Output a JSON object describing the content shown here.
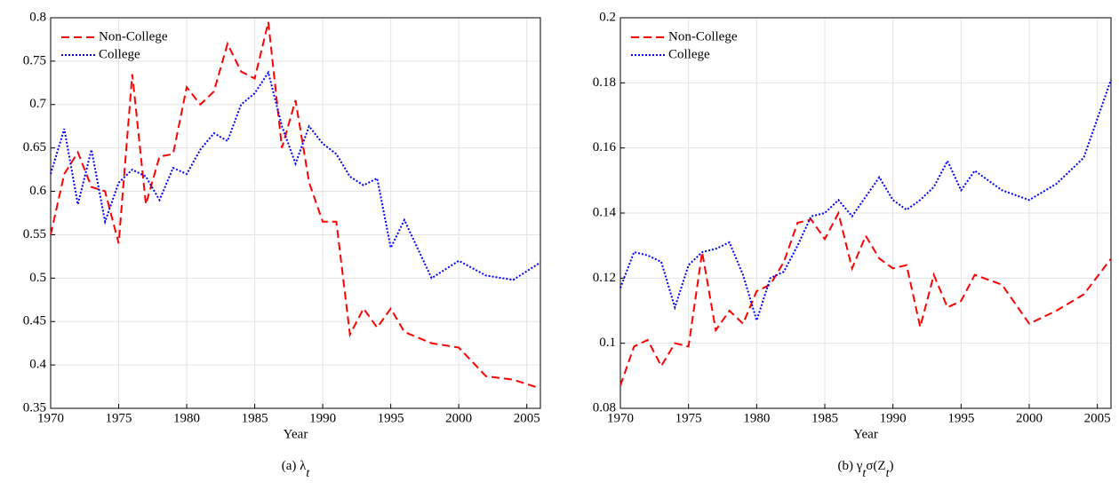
{
  "chart_data": [
    {
      "type": "line",
      "xlabel": "Year",
      "caption": [
        "(a) λ",
        "t"
      ],
      "x": [
        1970,
        1971,
        1972,
        1973,
        1974,
        1975,
        1976,
        1977,
        1978,
        1979,
        1980,
        1981,
        1982,
        1983,
        1984,
        1985,
        1986,
        1987,
        1988,
        1989,
        1990,
        1991,
        1992,
        1993,
        1994,
        1995,
        1996,
        1998,
        2000,
        2002,
        2004,
        2006
      ],
      "series": [
        {
          "name": "Non-College",
          "color": "#ff0000",
          "style": "dashed",
          "values": [
            0.55,
            0.62,
            0.645,
            0.605,
            0.6,
            0.54,
            0.735,
            0.585,
            0.64,
            0.643,
            0.72,
            0.7,
            0.715,
            0.77,
            0.738,
            0.73,
            0.795,
            0.65,
            0.705,
            0.61,
            0.565,
            0.565,
            0.435,
            0.465,
            0.443,
            0.465,
            0.438,
            0.425,
            0.42,
            0.387,
            0.383,
            0.373
          ]
        },
        {
          "name": "College",
          "color": "#0000ff",
          "style": "dotted",
          "values": [
            0.62,
            0.672,
            0.585,
            0.648,
            0.565,
            0.61,
            0.625,
            0.617,
            0.59,
            0.627,
            0.62,
            0.648,
            0.667,
            0.658,
            0.7,
            0.713,
            0.737,
            0.675,
            0.632,
            0.675,
            0.655,
            0.643,
            0.617,
            0.607,
            0.615,
            0.535,
            0.567,
            0.5,
            0.52,
            0.503,
            0.498,
            0.518
          ]
        }
      ],
      "xlim": [
        1970,
        2006
      ],
      "xticks": [
        1970,
        1975,
        1980,
        1985,
        1990,
        1995,
        2000,
        2005
      ],
      "ylim": [
        0.35,
        0.8
      ],
      "yticks": [
        0.35,
        0.4,
        0.45,
        0.5,
        0.55,
        0.6,
        0.65,
        0.7,
        0.75,
        0.8
      ],
      "grid": true,
      "legend": "upper-left"
    },
    {
      "type": "line",
      "xlabel": "Year",
      "caption": [
        "(b) γ",
        "t",
        "σ(Z",
        "t",
        ")"
      ],
      "x": [
        1970,
        1971,
        1972,
        1973,
        1974,
        1975,
        1976,
        1977,
        1978,
        1979,
        1980,
        1981,
        1982,
        1983,
        1984,
        1985,
        1986,
        1987,
        1988,
        1989,
        1990,
        1991,
        1992,
        1993,
        1994,
        1995,
        1996,
        1998,
        2000,
        2002,
        2004,
        2006
      ],
      "series": [
        {
          "name": "Non-College",
          "color": "#ff0000",
          "style": "dashed",
          "values": [
            0.087,
            0.099,
            0.101,
            0.093,
            0.1,
            0.099,
            0.128,
            0.104,
            0.11,
            0.106,
            0.116,
            0.118,
            0.125,
            0.137,
            0.138,
            0.132,
            0.14,
            0.123,
            0.133,
            0.126,
            0.123,
            0.124,
            0.105,
            0.121,
            0.111,
            0.113,
            0.121,
            0.118,
            0.106,
            0.11,
            0.115,
            0.126
          ]
        },
        {
          "name": "College",
          "color": "#0000ff",
          "style": "dotted",
          "values": [
            0.117,
            0.128,
            0.127,
            0.125,
            0.111,
            0.124,
            0.128,
            0.129,
            0.131,
            0.121,
            0.107,
            0.12,
            0.122,
            0.13,
            0.139,
            0.14,
            0.144,
            0.139,
            0.145,
            0.151,
            0.144,
            0.141,
            0.144,
            0.148,
            0.156,
            0.147,
            0.153,
            0.147,
            0.144,
            0.149,
            0.157,
            0.181
          ]
        }
      ],
      "xlim": [
        1970,
        2006
      ],
      "xticks": [
        1970,
        1975,
        1980,
        1985,
        1990,
        1995,
        2000,
        2005
      ],
      "ylim": [
        0.08,
        0.2
      ],
      "yticks": [
        0.08,
        0.1,
        0.12,
        0.14,
        0.16,
        0.18,
        0.2
      ],
      "grid": true,
      "legend": "upper-left"
    }
  ]
}
